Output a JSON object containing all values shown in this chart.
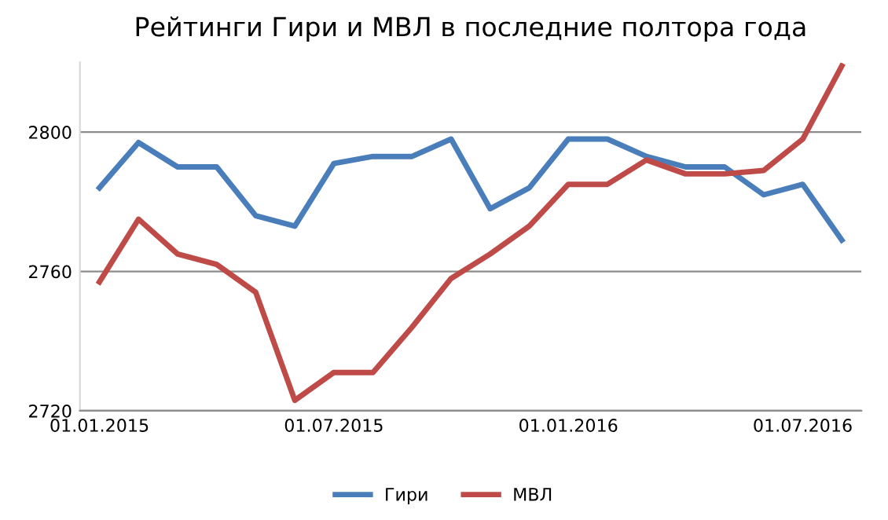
{
  "chart_data": {
    "type": "line",
    "title": "Рейтинги Гири и МВЛ в последние полтора года",
    "categories": [
      "01.01.2015",
      null,
      null,
      null,
      null,
      null,
      "01.07.2015",
      null,
      null,
      null,
      null,
      null,
      "01.01.2016",
      null,
      null,
      null,
      null,
      null,
      "01.07.2016",
      null
    ],
    "series": [
      {
        "name": "Гири",
        "color": "#4a7ebb",
        "values": [
          2784,
          2797,
          2790,
          2790,
          2776,
          2773,
          2791,
          2793,
          2793,
          2798,
          2778,
          2784,
          2798,
          2798,
          2793,
          2790,
          2790,
          2782,
          2785,
          2769
        ]
      },
      {
        "name": "МВЛ",
        "color": "#be4b48",
        "values": [
          2757,
          2775,
          2765,
          2762,
          2754,
          2723,
          2731,
          2731,
          2744,
          2758,
          2765,
          2773,
          2785,
          2785,
          2792,
          2788,
          2788,
          2789,
          2798,
          2819
        ]
      }
    ],
    "ylim": [
      2720,
      2820
    ],
    "yticks": [
      2720,
      2760,
      2800
    ],
    "grid": "y",
    "legend": "bottom",
    "marker": "none",
    "line_style": "solid"
  }
}
